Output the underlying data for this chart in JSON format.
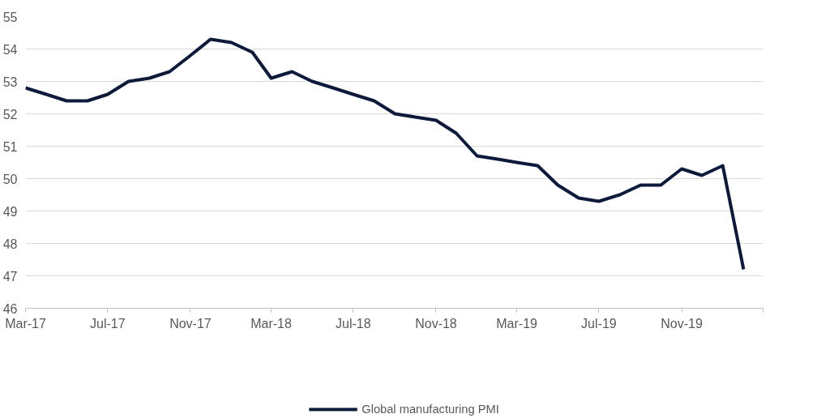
{
  "chart_data": {
    "type": "line",
    "x": [
      "2017-03",
      "2017-04",
      "2017-05",
      "2017-06",
      "2017-07",
      "2017-08",
      "2017-09",
      "2017-10",
      "2017-11",
      "2017-12",
      "2018-01",
      "2018-02",
      "2018-03",
      "2018-04",
      "2018-05",
      "2018-06",
      "2018-07",
      "2018-08",
      "2018-09",
      "2018-10",
      "2018-11",
      "2018-12",
      "2019-01",
      "2019-02",
      "2019-03",
      "2019-04",
      "2019-05",
      "2019-06",
      "2019-07",
      "2019-08",
      "2019-09",
      "2019-10",
      "2019-11",
      "2019-12",
      "2020-01",
      "2020-02"
    ],
    "series": [
      {
        "name": "Global manufacturing PMI",
        "color": "#0d1a3b",
        "values": [
          52.8,
          52.6,
          52.4,
          52.4,
          52.6,
          53.0,
          53.1,
          53.3,
          53.8,
          54.3,
          54.2,
          53.9,
          53.1,
          53.3,
          53.0,
          52.8,
          52.6,
          52.4,
          52.0,
          51.9,
          51.8,
          51.4,
          50.7,
          50.6,
          50.5,
          50.4,
          49.8,
          49.4,
          49.3,
          49.5,
          49.8,
          49.8,
          50.3,
          50.1,
          50.4,
          47.2
        ]
      }
    ],
    "xlim": [
      "2017-03",
      "2020-03"
    ],
    "xticks": [
      {
        "value": "2017-03",
        "label": "Mar-17"
      },
      {
        "value": "2017-07",
        "label": "Jul-17"
      },
      {
        "value": "2017-11",
        "label": "Nov-17"
      },
      {
        "value": "2018-03",
        "label": "Mar-18"
      },
      {
        "value": "2018-07",
        "label": "Jul-18"
      },
      {
        "value": "2018-11",
        "label": "Nov-18"
      },
      {
        "value": "2019-03",
        "label": "Mar-19"
      },
      {
        "value": "2019-07",
        "label": "Jul-19"
      },
      {
        "value": "2019-11",
        "label": "Nov-19"
      },
      {
        "value": "2020-03",
        "label": null
      }
    ],
    "ylim": [
      46,
      55
    ],
    "yticks": [
      46,
      47,
      48,
      49,
      50,
      51,
      52,
      53,
      54,
      55
    ],
    "grid": "y",
    "legend": "bottom",
    "marker": "none",
    "line_style": "solid"
  }
}
